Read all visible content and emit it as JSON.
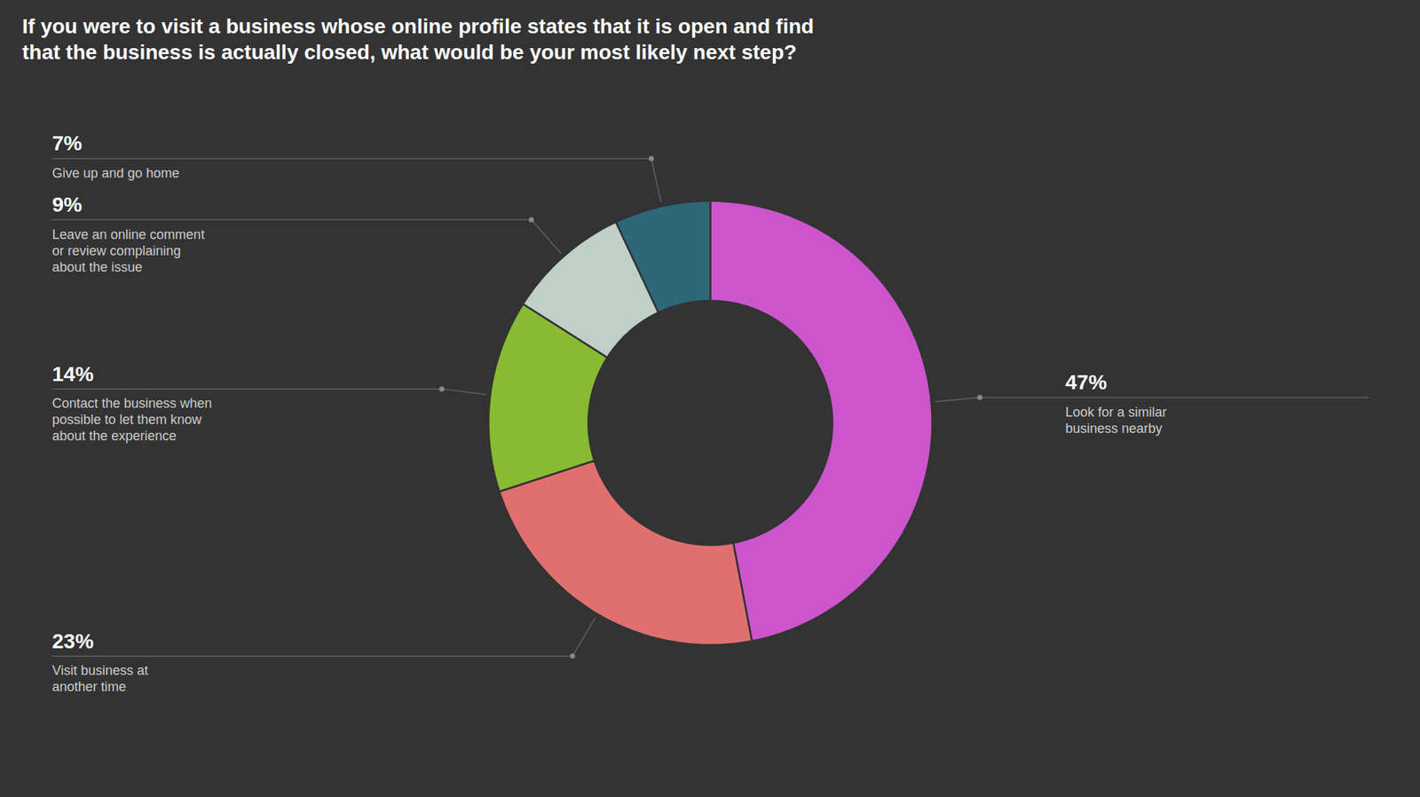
{
  "chart_data": {
    "type": "donut",
    "title": "If you were to visit a business whose online profile states that it is open and find\nthat the business is actually closed, what would be your most likely next step?",
    "categories": [
      "Look for a similar\nbusiness nearby",
      "Visit business at\nanother time",
      "Contact the business when\npossible to let them know\nabout the experience",
      "Leave an online comment\nor review complaining\nabout the issue",
      "Give up and go home"
    ],
    "values": [
      47,
      23,
      14,
      9,
      7
    ],
    "value_labels": [
      "47%",
      "23%",
      "14%",
      "9%",
      "7%"
    ],
    "colors": [
      "#cc55cc",
      "#e07070",
      "#88bb33",
      "#c0d0c8",
      "#2e6878"
    ],
    "data_labels": true
  }
}
